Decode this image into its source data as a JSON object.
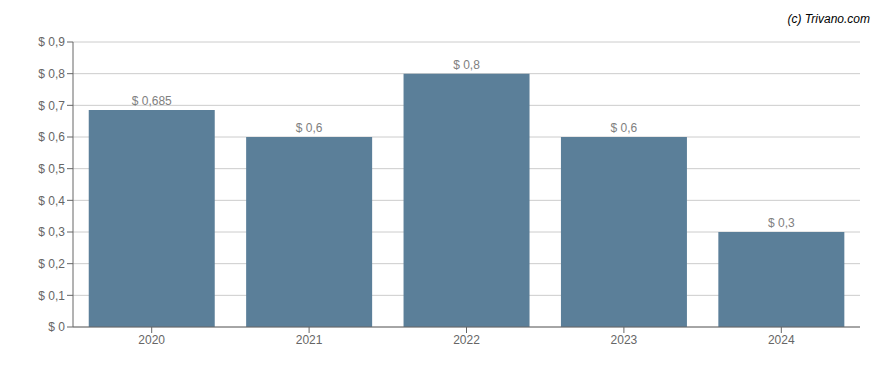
{
  "chart_data": {
    "type": "bar",
    "categories": [
      "2020",
      "2021",
      "2022",
      "2023",
      "2024"
    ],
    "values": [
      0.685,
      0.6,
      0.8,
      0.6,
      0.3
    ],
    "value_labels": [
      "$ 0,685",
      "$ 0,6",
      "$ 0,8",
      "$ 0,6",
      "$ 0,3"
    ],
    "data_labels": true,
    "color": "#5b7f99",
    "ylim": [
      0,
      0.9
    ],
    "yticks": [
      {
        "value": 0.0,
        "label": "$ 0"
      },
      {
        "value": 0.1,
        "label": "$ 0,1"
      },
      {
        "value": 0.2,
        "label": "$ 0,2"
      },
      {
        "value": 0.3,
        "label": "$ 0,3"
      },
      {
        "value": 0.4,
        "label": "$ 0,4"
      },
      {
        "value": 0.5,
        "label": "$ 0,5"
      },
      {
        "value": 0.6,
        "label": "$ 0,6"
      },
      {
        "value": 0.7,
        "label": "$ 0,7"
      },
      {
        "value": 0.8,
        "label": "$ 0,8"
      },
      {
        "value": 0.9,
        "label": "$ 0,9"
      }
    ],
    "grid": true,
    "annotations": [
      "(c) Trivano.com"
    ]
  }
}
